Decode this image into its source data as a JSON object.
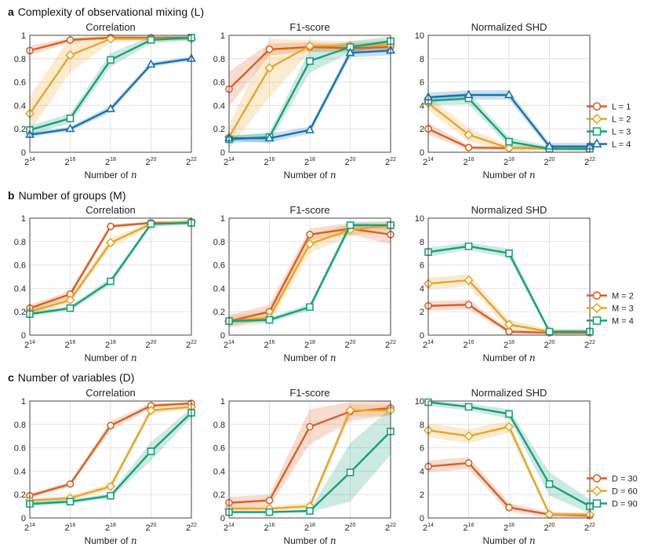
{
  "chart_data": [
    {
      "row": "a",
      "title": "Complexity of observational mixing (L)",
      "xlabel": "Number of n",
      "x": [
        "2^14",
        "2^16",
        "2^18",
        "2^20",
        "2^22"
      ],
      "legend": [
        "L = 1",
        "L = 2",
        "L = 3",
        "L = 4"
      ],
      "panels": [
        {
          "type": "line",
          "title": "Correlation",
          "ylim": [
            0,
            1
          ],
          "yticks": [
            "0",
            "0.2",
            "0.4",
            "0.6",
            "0.8",
            "1"
          ],
          "series": [
            {
              "name": "L = 1",
              "values": [
                0.87,
                0.96,
                0.98,
                0.98,
                0.98
              ],
              "band": [
                0.04,
                0.02,
                0.01,
                0.01,
                0.01
              ]
            },
            {
              "name": "L = 2",
              "values": [
                0.33,
                0.83,
                0.97,
                0.97,
                0.97
              ],
              "band": [
                0.15,
                0.15,
                0.03,
                0.02,
                0.02
              ]
            },
            {
              "name": "L = 3",
              "values": [
                0.19,
                0.29,
                0.79,
                0.96,
                0.98
              ],
              "band": [
                0.04,
                0.04,
                0.06,
                0.03,
                0.02
              ]
            },
            {
              "name": "L = 4",
              "values": [
                0.15,
                0.2,
                0.37,
                0.75,
                0.8
              ],
              "band": [
                0.02,
                0.02,
                0.03,
                0.02,
                0.02
              ]
            }
          ]
        },
        {
          "type": "line",
          "title": "F1-score",
          "ylim": [
            0,
            1
          ],
          "yticks": [
            "0",
            "0.2",
            "0.4",
            "0.6",
            "0.8",
            "1"
          ],
          "series": [
            {
              "name": "L = 1",
              "values": [
                0.54,
                0.88,
                0.9,
                0.89,
                0.9
              ],
              "band": [
                0.15,
                0.05,
                0.04,
                0.04,
                0.04
              ]
            },
            {
              "name": "L = 2",
              "values": [
                0.13,
                0.72,
                0.91,
                0.91,
                0.92
              ],
              "band": [
                0.1,
                0.25,
                0.05,
                0.04,
                0.04
              ]
            },
            {
              "name": "L = 3",
              "values": [
                0.11,
                0.13,
                0.78,
                0.9,
                0.95
              ],
              "band": [
                0.03,
                0.04,
                0.1,
                0.05,
                0.04
              ]
            },
            {
              "name": "L = 4",
              "values": [
                0.12,
                0.12,
                0.19,
                0.85,
                0.87
              ],
              "band": [
                0.02,
                0.04,
                0.03,
                0.04,
                0.04
              ]
            }
          ]
        },
        {
          "type": "line",
          "title": "Normalized SHD",
          "ylim": [
            0,
            10
          ],
          "yticks": [
            "0",
            "2",
            "4",
            "6",
            "8",
            "10"
          ],
          "series": [
            {
              "name": "L = 1",
              "values": [
                2.0,
                0.4,
                0.35,
                0.35,
                0.3
              ],
              "band": [
                0.5,
                0.2,
                0.15,
                0.15,
                0.15
              ]
            },
            {
              "name": "L = 2",
              "values": [
                4.2,
                1.5,
                0.35,
                0.35,
                0.35
              ],
              "band": [
                0.6,
                0.6,
                0.2,
                0.2,
                0.2
              ]
            },
            {
              "name": "L = 3",
              "values": [
                4.4,
                4.6,
                0.9,
                0.3,
                0.3
              ],
              "band": [
                0.4,
                0.5,
                0.4,
                0.2,
                0.2
              ]
            },
            {
              "name": "L = 4",
              "values": [
                4.7,
                4.9,
                4.9,
                0.5,
                0.5
              ],
              "band": [
                0.4,
                0.4,
                0.4,
                0.3,
                0.3
              ]
            }
          ]
        }
      ]
    },
    {
      "row": "b",
      "title": "Number of groups (M)",
      "xlabel": "Number of n",
      "x": [
        "2^14",
        "2^16",
        "2^18",
        "2^20",
        "2^22"
      ],
      "legend": [
        "M = 2",
        "M = 3",
        "M = 4"
      ],
      "panels": [
        {
          "type": "line",
          "title": "Correlation",
          "ylim": [
            0,
            1
          ],
          "yticks": [
            "0",
            "0.2",
            "0.4",
            "0.6",
            "0.8",
            "1"
          ],
          "series": [
            {
              "name": "M = 2",
              "values": [
                0.23,
                0.35,
                0.93,
                0.96,
                0.96
              ],
              "band": [
                0.03,
                0.03,
                0.02,
                0.01,
                0.01
              ]
            },
            {
              "name": "M = 3",
              "values": [
                0.2,
                0.3,
                0.79,
                0.95,
                0.97
              ],
              "band": [
                0.03,
                0.03,
                0.04,
                0.02,
                0.02
              ]
            },
            {
              "name": "M = 4",
              "values": [
                0.18,
                0.23,
                0.46,
                0.95,
                0.96
              ],
              "band": [
                0.02,
                0.02,
                0.03,
                0.02,
                0.02
              ]
            }
          ]
        },
        {
          "type": "line",
          "title": "F1-score",
          "ylim": [
            0,
            1
          ],
          "yticks": [
            "0",
            "0.2",
            "0.4",
            "0.6",
            "0.8",
            "1"
          ],
          "series": [
            {
              "name": "M = 2",
              "values": [
                0.12,
                0.2,
                0.86,
                0.91,
                0.86
              ],
              "band": [
                0.05,
                0.06,
                0.05,
                0.05,
                0.08
              ]
            },
            {
              "name": "M = 3",
              "values": [
                0.12,
                0.15,
                0.78,
                0.9,
                0.94
              ],
              "band": [
                0.05,
                0.05,
                0.08,
                0.05,
                0.04
              ]
            },
            {
              "name": "M = 4",
              "values": [
                0.12,
                0.13,
                0.24,
                0.94,
                0.94
              ],
              "band": [
                0.02,
                0.02,
                0.03,
                0.03,
                0.03
              ]
            }
          ]
        },
        {
          "type": "line",
          "title": "Normalized SHD",
          "ylim": [
            0,
            10
          ],
          "yticks": [
            "0",
            "2",
            "4",
            "6",
            "8",
            "10"
          ],
          "series": [
            {
              "name": "M = 2",
              "values": [
                2.5,
                2.6,
                0.3,
                0.2,
                0.2
              ],
              "band": [
                0.4,
                0.4,
                0.2,
                0.15,
                0.15
              ]
            },
            {
              "name": "M = 3",
              "values": [
                4.4,
                4.7,
                0.9,
                0.3,
                0.3
              ],
              "band": [
                0.5,
                0.5,
                0.4,
                0.2,
                0.2
              ]
            },
            {
              "name": "M = 4",
              "values": [
                7.1,
                7.6,
                7.0,
                0.3,
                0.3
              ],
              "band": [
                0.4,
                0.3,
                0.4,
                0.2,
                0.2
              ]
            }
          ]
        }
      ]
    },
    {
      "row": "c",
      "title": "Number of variables (D)",
      "xlabel": "Number of n",
      "x": [
        "2^14",
        "2^16",
        "2^18",
        "2^20",
        "2^22"
      ],
      "legend": [
        "D = 30",
        "D = 60",
        "D = 90"
      ],
      "panels": [
        {
          "type": "line",
          "title": "Correlation",
          "ylim": [
            0,
            1
          ],
          "yticks": [
            "0",
            "0.2",
            "0.4",
            "0.6",
            "0.8",
            "1"
          ],
          "series": [
            {
              "name": "D = 30",
              "values": [
                0.19,
                0.29,
                0.79,
                0.96,
                0.98
              ],
              "band": [
                0.02,
                0.02,
                0.04,
                0.02,
                0.01
              ]
            },
            {
              "name": "D = 60",
              "values": [
                0.15,
                0.17,
                0.27,
                0.92,
                0.95
              ],
              "band": [
                0.02,
                0.02,
                0.03,
                0.03,
                0.02
              ]
            },
            {
              "name": "D = 90",
              "values": [
                0.12,
                0.14,
                0.19,
                0.57,
                0.9
              ],
              "band": [
                0.02,
                0.02,
                0.02,
                0.08,
                0.04
              ]
            }
          ]
        },
        {
          "type": "line",
          "title": "F1-score",
          "ylim": [
            0,
            1
          ],
          "yticks": [
            "0",
            "0.2",
            "0.4",
            "0.6",
            "0.8",
            "1"
          ],
          "series": [
            {
              "name": "D = 30",
              "values": [
                0.13,
                0.15,
                0.78,
                0.91,
                0.94
              ],
              "band": [
                0.05,
                0.05,
                0.15,
                0.08,
                0.06
              ]
            },
            {
              "name": "D = 60",
              "values": [
                0.08,
                0.08,
                0.1,
                0.92,
                0.92
              ],
              "band": [
                0.02,
                0.02,
                0.03,
                0.05,
                0.05
              ]
            },
            {
              "name": "D = 90",
              "values": [
                0.05,
                0.05,
                0.06,
                0.39,
                0.74
              ],
              "band": [
                0.01,
                0.01,
                0.01,
                0.25,
                0.2
              ]
            }
          ]
        },
        {
          "type": "line",
          "title": "Normalized SHD",
          "ylim": [
            0,
            10
          ],
          "yticks": [
            "0",
            "2",
            "4",
            "6",
            "8",
            "10"
          ],
          "series": [
            {
              "name": "D = 30",
              "values": [
                4.4,
                4.7,
                0.9,
                0.3,
                0.2
              ],
              "band": [
                0.5,
                0.5,
                0.4,
                0.2,
                0.15
              ]
            },
            {
              "name": "D = 60",
              "values": [
                7.5,
                7.0,
                7.8,
                0.3,
                0.3
              ],
              "band": [
                0.6,
                0.6,
                0.5,
                0.2,
                0.2
              ]
            },
            {
              "name": "D = 90",
              "values": [
                9.9,
                9.5,
                8.9,
                2.9,
                1.0
              ],
              "band": [
                0.3,
                0.3,
                0.4,
                1.0,
                0.6
              ]
            }
          ]
        }
      ]
    }
  ],
  "series_colors": [
    "#d95f25",
    "#e6a52c",
    "#17a07a",
    "#1872b0"
  ],
  "marker_shapes": {
    "a": [
      "circle",
      "diamond",
      "square",
      "triangle"
    ],
    "b": [
      "circle",
      "diamond",
      "square"
    ],
    "c": [
      "circle",
      "diamond",
      "square"
    ]
  }
}
